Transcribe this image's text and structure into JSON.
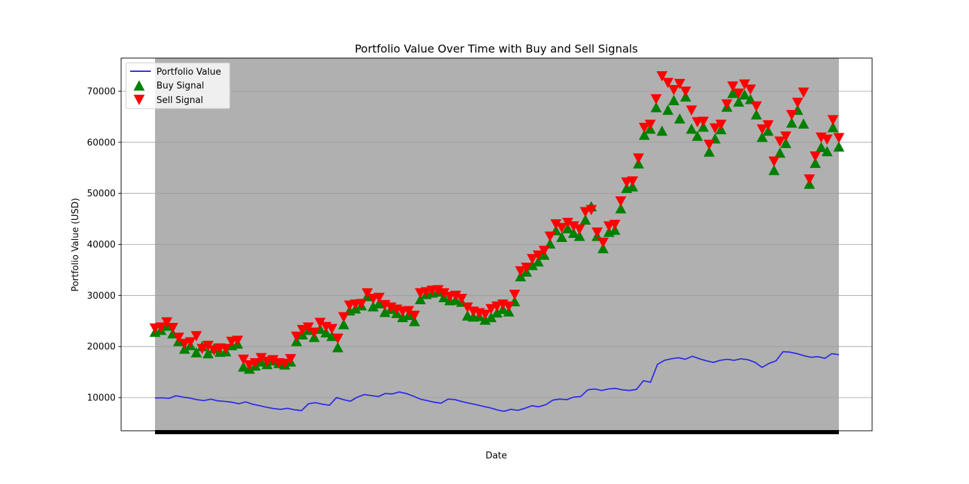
{
  "chart_data": {
    "type": "line",
    "title": "Portfolio Value Over Time with Buy and Sell Signals",
    "xlabel": "Date",
    "ylabel": "Portfolio Value (USD)",
    "ylim": [
      3500,
      76500
    ],
    "yticks": [
      10000,
      20000,
      30000,
      40000,
      50000,
      60000,
      70000
    ],
    "ytick_labels": [
      "10000",
      "20000",
      "30000",
      "40000",
      "50000",
      "60000",
      "70000"
    ],
    "grid": "horizontal",
    "legend_position": "top-left",
    "colors": {
      "portfolio": "#2a2ae6",
      "buy": "#008000",
      "sell": "#ff0000",
      "signal_band": "#b0b0b0"
    },
    "series": [
      {
        "name": "Portfolio Value",
        "kind": "line",
        "values": [
          9900,
          9950,
          9850,
          10350,
          10100,
          9900,
          9600,
          9400,
          9700,
          9350,
          9250,
          9100,
          8800,
          9150,
          8700,
          8400,
          8100,
          7850,
          7700,
          7900,
          7600,
          7450,
          8800,
          9000,
          8700,
          8500,
          10000,
          9600,
          9300,
          10100,
          10600,
          10400,
          10200,
          10800,
          10700,
          11100,
          10800,
          10300,
          9700,
          9400,
          9100,
          8900,
          9700,
          9600,
          9200,
          8900,
          8600,
          8300,
          8000,
          7600,
          7300,
          7700,
          7500,
          7900,
          8400,
          8200,
          8600,
          9500,
          9700,
          9600,
          10100,
          10200,
          11500,
          11700,
          11400,
          11700,
          11800,
          11500,
          11400,
          11600,
          13300,
          13000,
          16500,
          17300,
          17600,
          17800,
          17500,
          18100,
          17600,
          17200,
          16900,
          17300,
          17500,
          17300,
          17600,
          17400,
          16900,
          15900,
          16700,
          17200,
          19000,
          18900,
          18600,
          18200,
          17900,
          18000,
          17700,
          18600,
          18400
        ]
      },
      {
        "name": "Buy Signal",
        "kind": "marker-up",
        "values": [
          22800,
          23200,
          24000,
          22500,
          21000,
          19500,
          20200,
          18800,
          20000,
          18600,
          19600,
          18900,
          19000,
          20200,
          20500,
          16000,
          15600,
          16200,
          17000,
          16500,
          17200,
          16700,
          16400,
          17000,
          21000,
          22300,
          23200,
          21800,
          23400,
          22700,
          22000,
          19800,
          24300,
          27000,
          27400,
          28000,
          29800,
          27800,
          28400,
          26700,
          27300,
          26500,
          25700,
          26100,
          24900,
          29200,
          30200,
          30500,
          30700,
          29600,
          29000,
          29100,
          28700,
          26000,
          25800,
          25900,
          25200,
          25700,
          26600,
          27300,
          26800,
          28800,
          33700,
          34600,
          35900,
          36600,
          37900,
          40100,
          42700,
          41400,
          43100,
          42200,
          41600,
          44800,
          47400,
          41600,
          39200,
          42400,
          42800,
          47000,
          51000,
          51300,
          55800,
          61400,
          62600,
          66800,
          62200,
          66300,
          68200,
          64600,
          68900,
          62600,
          61200,
          63000,
          58100,
          60700,
          62500,
          66900,
          69600,
          67900,
          69300,
          68400,
          65400,
          61000,
          62200,
          54500,
          57900,
          59800,
          63800,
          66300,
          63600,
          51800,
          55900,
          59000,
          58200,
          62900,
          59100
        ]
      },
      {
        "name": "Sell Signal",
        "kind": "marker-down",
        "values": [
          23600,
          23800,
          24800,
          23700,
          21800,
          20600,
          20900,
          22100,
          19600,
          20200,
          19300,
          19700,
          19600,
          21000,
          21200,
          17500,
          16400,
          16800,
          17800,
          17100,
          17400,
          16800,
          16700,
          17600,
          22000,
          23300,
          23800,
          22800,
          24700,
          23900,
          23500,
          21600,
          25800,
          28100,
          28300,
          28400,
          30500,
          29400,
          29600,
          28200,
          27700,
          27300,
          26900,
          27000,
          26100,
          30500,
          30700,
          31000,
          31100,
          30500,
          29800,
          30000,
          29400,
          27700,
          26900,
          26600,
          26300,
          27400,
          27900,
          28300,
          27900,
          30200,
          34800,
          35500,
          37200,
          37900,
          38800,
          41600,
          44000,
          43300,
          44300,
          43600,
          43000,
          46400,
          46800,
          42400,
          40400,
          43600,
          43900,
          48500,
          52200,
          52400,
          56900,
          62900,
          63500,
          68500,
          73000,
          71700,
          70300,
          71500,
          70000,
          66300,
          64000,
          64100,
          59600,
          62800,
          63500,
          67500,
          71000,
          69600,
          71400,
          70400,
          67100,
          62600,
          63400,
          56300,
          60200,
          61200,
          65400,
          67800,
          69800,
          52800,
          57300,
          61000,
          60600,
          64400,
          60900
        ]
      }
    ]
  }
}
